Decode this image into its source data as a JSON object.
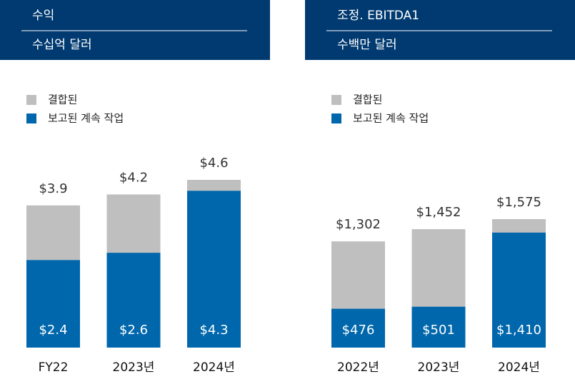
{
  "chart_data": [
    {
      "type": "bar",
      "title": "수익",
      "subtitle": "수십억 달러",
      "categories": [
        "FY22",
        "2023년",
        "2024년"
      ],
      "series": [
        {
          "name": "결합된",
          "color": "#bfbfbf",
          "values": [
            3.9,
            4.2,
            4.6
          ],
          "value_labels": [
            "$3.9",
            "$4.2",
            "$4.6"
          ]
        },
        {
          "name": "보고된 계속 작업",
          "color": "#0067ac",
          "values": [
            2.4,
            2.6,
            4.3
          ],
          "value_labels": [
            "$2.4",
            "$2.6",
            "$4.3"
          ]
        }
      ]
    },
    {
      "type": "bar",
      "title": "조정. EBITDA1",
      "subtitle": "수백만 달러",
      "categories": [
        "2022년",
        "2023년",
        "2024년"
      ],
      "series": [
        {
          "name": "결합된",
          "color": "#bfbfbf",
          "values": [
            1302,
            1452,
            1575
          ],
          "value_labels": [
            "$1,302",
            "$1,452",
            "$1,575"
          ]
        },
        {
          "name": "보고된 계속 작업",
          "color": "#0067ac",
          "values": [
            476,
            501,
            1410
          ],
          "value_labels": [
            "$476",
            "$501",
            "$1,410"
          ]
        }
      ]
    }
  ]
}
